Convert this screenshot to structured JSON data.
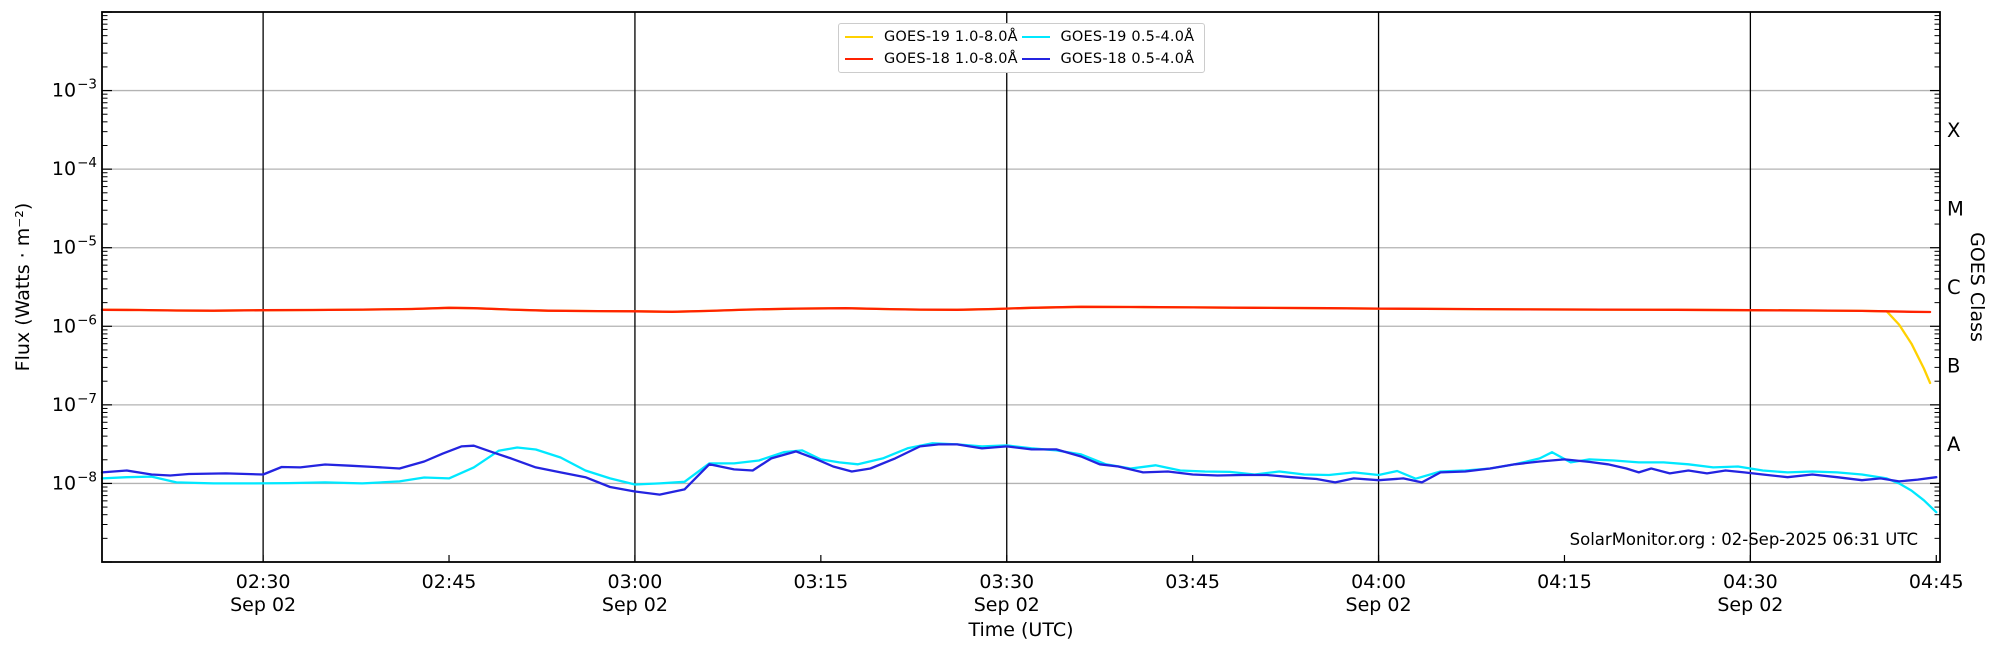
{
  "footer": {
    "credit": "SolarMonitor.org : 02-Sep-2025 06:31 UTC"
  },
  "chart_data": {
    "type": "line",
    "title": "",
    "xlabel": "Time (UTC)",
    "ylabel": "Flux (Watts · m⁻²)",
    "ylabel_right": "GOES Class",
    "x_axis": {
      "start_minutes": 137,
      "end_minutes": 285.3,
      "date": "Sep 02",
      "tick_interval_minutes": 15
    },
    "ylim": [
      1e-09,
      0.01
    ],
    "grid": {
      "horizontal": "log decades, gray",
      "vertical": "every 30 min, black"
    },
    "legend_position": "top center",
    "yticks": [
      {
        "value": 0.001,
        "exp": "−3",
        "label": "10⁻³"
      },
      {
        "value": 0.0001,
        "exp": "−4",
        "label": "10⁻⁴"
      },
      {
        "value": 1e-05,
        "exp": "−5",
        "label": "10⁻⁵"
      },
      {
        "value": 1e-06,
        "exp": "−6",
        "label": "10⁻⁶"
      },
      {
        "value": 1e-07,
        "exp": "−7",
        "label": "10⁻⁷"
      },
      {
        "value": 1e-08,
        "exp": "−8",
        "label": "10⁻⁸"
      }
    ],
    "xticks": [
      {
        "minutes": 150,
        "label": "02:30",
        "day": "Sep 02"
      },
      {
        "minutes": 165,
        "label": "02:45"
      },
      {
        "minutes": 180,
        "label": "03:00",
        "day": "Sep 02"
      },
      {
        "minutes": 195,
        "label": "03:15"
      },
      {
        "minutes": 210,
        "label": "03:30",
        "day": "Sep 02"
      },
      {
        "minutes": 225,
        "label": "03:45"
      },
      {
        "minutes": 240,
        "label": "04:00",
        "day": "Sep 02"
      },
      {
        "minutes": 255,
        "label": "04:15"
      },
      {
        "minutes": 270,
        "label": "04:30",
        "day": "Sep 02"
      },
      {
        "minutes": 285,
        "label": "04:45"
      }
    ],
    "goes_classes": [
      {
        "label": "X",
        "log_center": -3.5
      },
      {
        "label": "M",
        "log_center": -4.5
      },
      {
        "label": "C",
        "log_center": -5.5
      },
      {
        "label": "B",
        "log_center": -6.5
      },
      {
        "label": "A",
        "log_center": -7.5
      }
    ],
    "series": [
      {
        "name": "GOES-19 1.0-8.0Å",
        "label": "GOES-19 1.0-8.0Å",
        "color": "#FFD100",
        "points": [
          [
            137,
            1.62e-06
          ],
          [
            140,
            1.61e-06
          ],
          [
            143,
            1.59e-06
          ],
          [
            146,
            1.58e-06
          ],
          [
            150,
            1.6e-06
          ],
          [
            154,
            1.61e-06
          ],
          [
            158,
            1.63e-06
          ],
          [
            162,
            1.66e-06
          ],
          [
            165,
            1.72e-06
          ],
          [
            167,
            1.7e-06
          ],
          [
            170,
            1.63e-06
          ],
          [
            173,
            1.58e-06
          ],
          [
            177,
            1.56e-06
          ],
          [
            180,
            1.55e-06
          ],
          [
            183,
            1.53e-06
          ],
          [
            186,
            1.57e-06
          ],
          [
            189,
            1.63e-06
          ],
          [
            193,
            1.68e-06
          ],
          [
            197,
            1.7e-06
          ],
          [
            200,
            1.66e-06
          ],
          [
            203,
            1.63e-06
          ],
          [
            206,
            1.62e-06
          ],
          [
            209,
            1.66e-06
          ],
          [
            212,
            1.72e-06
          ],
          [
            216,
            1.77e-06
          ],
          [
            220,
            1.76e-06
          ],
          [
            225,
            1.74e-06
          ],
          [
            230,
            1.72e-06
          ],
          [
            236,
            1.7e-06
          ],
          [
            240,
            1.68e-06
          ],
          [
            246,
            1.66e-06
          ],
          [
            252,
            1.64e-06
          ],
          [
            258,
            1.63e-06
          ],
          [
            264,
            1.62e-06
          ],
          [
            270,
            1.6e-06
          ],
          [
            275,
            1.59e-06
          ],
          [
            279,
            1.57e-06
          ],
          [
            281,
            1.55e-06
          ],
          [
            282,
            1.05e-06
          ],
          [
            283,
            6e-07
          ],
          [
            284,
            2.9e-07
          ],
          [
            284.5,
            1.9e-07
          ]
        ]
      },
      {
        "name": "GOES-18 1.0-8.0Å",
        "label": "GOES-18 1.0-8.0Å",
        "color": "#FF2201",
        "points": [
          [
            137,
            1.62e-06
          ],
          [
            140,
            1.61e-06
          ],
          [
            143,
            1.59e-06
          ],
          [
            146,
            1.58e-06
          ],
          [
            150,
            1.6e-06
          ],
          [
            154,
            1.61e-06
          ],
          [
            158,
            1.63e-06
          ],
          [
            162,
            1.66e-06
          ],
          [
            165,
            1.72e-06
          ],
          [
            167,
            1.7e-06
          ],
          [
            170,
            1.63e-06
          ],
          [
            173,
            1.58e-06
          ],
          [
            177,
            1.56e-06
          ],
          [
            180,
            1.55e-06
          ],
          [
            183,
            1.53e-06
          ],
          [
            186,
            1.57e-06
          ],
          [
            189,
            1.63e-06
          ],
          [
            193,
            1.68e-06
          ],
          [
            197,
            1.7e-06
          ],
          [
            200,
            1.66e-06
          ],
          [
            203,
            1.63e-06
          ],
          [
            206,
            1.62e-06
          ],
          [
            209,
            1.66e-06
          ],
          [
            212,
            1.72e-06
          ],
          [
            216,
            1.77e-06
          ],
          [
            220,
            1.76e-06
          ],
          [
            225,
            1.74e-06
          ],
          [
            230,
            1.72e-06
          ],
          [
            236,
            1.7e-06
          ],
          [
            240,
            1.68e-06
          ],
          [
            246,
            1.66e-06
          ],
          [
            252,
            1.64e-06
          ],
          [
            258,
            1.63e-06
          ],
          [
            264,
            1.62e-06
          ],
          [
            270,
            1.6e-06
          ],
          [
            275,
            1.59e-06
          ],
          [
            279,
            1.57e-06
          ],
          [
            281,
            1.55e-06
          ],
          [
            283,
            1.53e-06
          ],
          [
            284.5,
            1.52e-06
          ]
        ]
      },
      {
        "name": "GOES-19 0.5-4.0Å",
        "label": "GOES-19 0.5-4.0Å",
        "color": "#00E8FF",
        "points": [
          [
            137,
            1.16e-08
          ],
          [
            139,
            1.2e-08
          ],
          [
            141,
            1.22e-08
          ],
          [
            143,
            1.03e-08
          ],
          [
            146,
            1e-08
          ],
          [
            149,
            1e-08
          ],
          [
            152,
            1.01e-08
          ],
          [
            155,
            1.03e-08
          ],
          [
            158,
            1e-08
          ],
          [
            161,
            1.06e-08
          ],
          [
            163,
            1.19e-08
          ],
          [
            165,
            1.16e-08
          ],
          [
            167,
            1.6e-08
          ],
          [
            169,
            2.6e-08
          ],
          [
            170.5,
            2.87e-08
          ],
          [
            172,
            2.7e-08
          ],
          [
            174,
            2.14e-08
          ],
          [
            176,
            1.46e-08
          ],
          [
            178,
            1.16e-08
          ],
          [
            180,
            9.7e-09
          ],
          [
            182,
            1e-08
          ],
          [
            184,
            1.05e-08
          ],
          [
            186,
            1.8e-08
          ],
          [
            188,
            1.8e-08
          ],
          [
            190,
            1.96e-08
          ],
          [
            192,
            2.5e-08
          ],
          [
            193.5,
            2.63e-08
          ],
          [
            195,
            2.02e-08
          ],
          [
            196.5,
            1.85e-08
          ],
          [
            198,
            1.75e-08
          ],
          [
            200,
            2.08e-08
          ],
          [
            202,
            2.8e-08
          ],
          [
            204,
            3.24e-08
          ],
          [
            206,
            3.14e-08
          ],
          [
            208,
            2.96e-08
          ],
          [
            210,
            3.05e-08
          ],
          [
            212,
            2.8e-08
          ],
          [
            214,
            2.63e-08
          ],
          [
            216,
            2.34e-08
          ],
          [
            218,
            1.75e-08
          ],
          [
            220,
            1.55e-08
          ],
          [
            222,
            1.7e-08
          ],
          [
            224,
            1.46e-08
          ],
          [
            226,
            1.42e-08
          ],
          [
            228,
            1.4e-08
          ],
          [
            230,
            1.3e-08
          ],
          [
            232,
            1.42e-08
          ],
          [
            234,
            1.3e-08
          ],
          [
            236,
            1.28e-08
          ],
          [
            238,
            1.38e-08
          ],
          [
            240,
            1.28e-08
          ],
          [
            241.5,
            1.44e-08
          ],
          [
            243,
            1.15e-08
          ],
          [
            245,
            1.42e-08
          ],
          [
            247,
            1.46e-08
          ],
          [
            249,
            1.55e-08
          ],
          [
            251,
            1.75e-08
          ],
          [
            253,
            2.08e-08
          ],
          [
            254,
            2.5e-08
          ],
          [
            255.5,
            1.85e-08
          ],
          [
            257,
            2.02e-08
          ],
          [
            259,
            1.96e-08
          ],
          [
            261,
            1.85e-08
          ],
          [
            263,
            1.85e-08
          ],
          [
            265,
            1.75e-08
          ],
          [
            267,
            1.6e-08
          ],
          [
            269,
            1.64e-08
          ],
          [
            271,
            1.46e-08
          ],
          [
            273,
            1.38e-08
          ],
          [
            275,
            1.42e-08
          ],
          [
            277,
            1.38e-08
          ],
          [
            279,
            1.3e-08
          ],
          [
            281,
            1.16e-08
          ],
          [
            282,
            1e-08
          ],
          [
            283,
            8.1e-09
          ],
          [
            284,
            6.1e-09
          ],
          [
            285,
            4.3e-09
          ]
        ]
      },
      {
        "name": "GOES-18 0.5-4.0Å",
        "label": "GOES-18 0.5-4.0Å",
        "color": "#2424E0",
        "points": [
          [
            137,
            1.38e-08
          ],
          [
            139,
            1.46e-08
          ],
          [
            141,
            1.3e-08
          ],
          [
            142.5,
            1.26e-08
          ],
          [
            144,
            1.32e-08
          ],
          [
            147,
            1.34e-08
          ],
          [
            150,
            1.3e-08
          ],
          [
            151.5,
            1.62e-08
          ],
          [
            153,
            1.6e-08
          ],
          [
            155,
            1.74e-08
          ],
          [
            157,
            1.68e-08
          ],
          [
            159,
            1.62e-08
          ],
          [
            161,
            1.55e-08
          ],
          [
            163,
            1.9e-08
          ],
          [
            164.5,
            2.4e-08
          ],
          [
            166,
            2.96e-08
          ],
          [
            167,
            3.02e-08
          ],
          [
            168.5,
            2.5e-08
          ],
          [
            170,
            2.08e-08
          ],
          [
            172,
            1.6e-08
          ],
          [
            174,
            1.38e-08
          ],
          [
            176,
            1.2e-08
          ],
          [
            178,
            9e-09
          ],
          [
            180,
            7.9e-09
          ],
          [
            182,
            7.2e-09
          ],
          [
            184,
            8.4e-09
          ],
          [
            186,
            1.75e-08
          ],
          [
            188,
            1.51e-08
          ],
          [
            189.5,
            1.46e-08
          ],
          [
            191,
            2.08e-08
          ],
          [
            193,
            2.56e-08
          ],
          [
            194.5,
            2.08e-08
          ],
          [
            196,
            1.64e-08
          ],
          [
            197.5,
            1.42e-08
          ],
          [
            199,
            1.55e-08
          ],
          [
            201,
            2.08e-08
          ],
          [
            203,
            2.96e-08
          ],
          [
            204.5,
            3.14e-08
          ],
          [
            206,
            3.14e-08
          ],
          [
            208,
            2.79e-08
          ],
          [
            210,
            2.96e-08
          ],
          [
            212,
            2.71e-08
          ],
          [
            214,
            2.71e-08
          ],
          [
            216,
            2.2e-08
          ],
          [
            217.5,
            1.75e-08
          ],
          [
            219,
            1.64e-08
          ],
          [
            221,
            1.38e-08
          ],
          [
            223,
            1.42e-08
          ],
          [
            225,
            1.3e-08
          ],
          [
            227,
            1.26e-08
          ],
          [
            229,
            1.28e-08
          ],
          [
            231,
            1.28e-08
          ],
          [
            233,
            1.2e-08
          ],
          [
            235,
            1.14e-08
          ],
          [
            236.5,
            1.03e-08
          ],
          [
            238,
            1.16e-08
          ],
          [
            240,
            1.1e-08
          ],
          [
            242,
            1.16e-08
          ],
          [
            243.5,
            1.03e-08
          ],
          [
            245,
            1.38e-08
          ],
          [
            247,
            1.42e-08
          ],
          [
            249,
            1.55e-08
          ],
          [
            251,
            1.75e-08
          ],
          [
            253,
            1.9e-08
          ],
          [
            255,
            2.02e-08
          ],
          [
            257,
            1.88e-08
          ],
          [
            258.5,
            1.75e-08
          ],
          [
            260,
            1.55e-08
          ],
          [
            261,
            1.38e-08
          ],
          [
            262,
            1.55e-08
          ],
          [
            263.5,
            1.34e-08
          ],
          [
            265,
            1.46e-08
          ],
          [
            266.5,
            1.34e-08
          ],
          [
            268,
            1.46e-08
          ],
          [
            269.5,
            1.38e-08
          ],
          [
            271,
            1.3e-08
          ],
          [
            273,
            1.2e-08
          ],
          [
            275,
            1.3e-08
          ],
          [
            277,
            1.2e-08
          ],
          [
            279,
            1.1e-08
          ],
          [
            280.5,
            1.16e-08
          ],
          [
            282,
            1.06e-08
          ],
          [
            283.5,
            1.12e-08
          ],
          [
            285,
            1.2e-08
          ]
        ]
      }
    ]
  }
}
